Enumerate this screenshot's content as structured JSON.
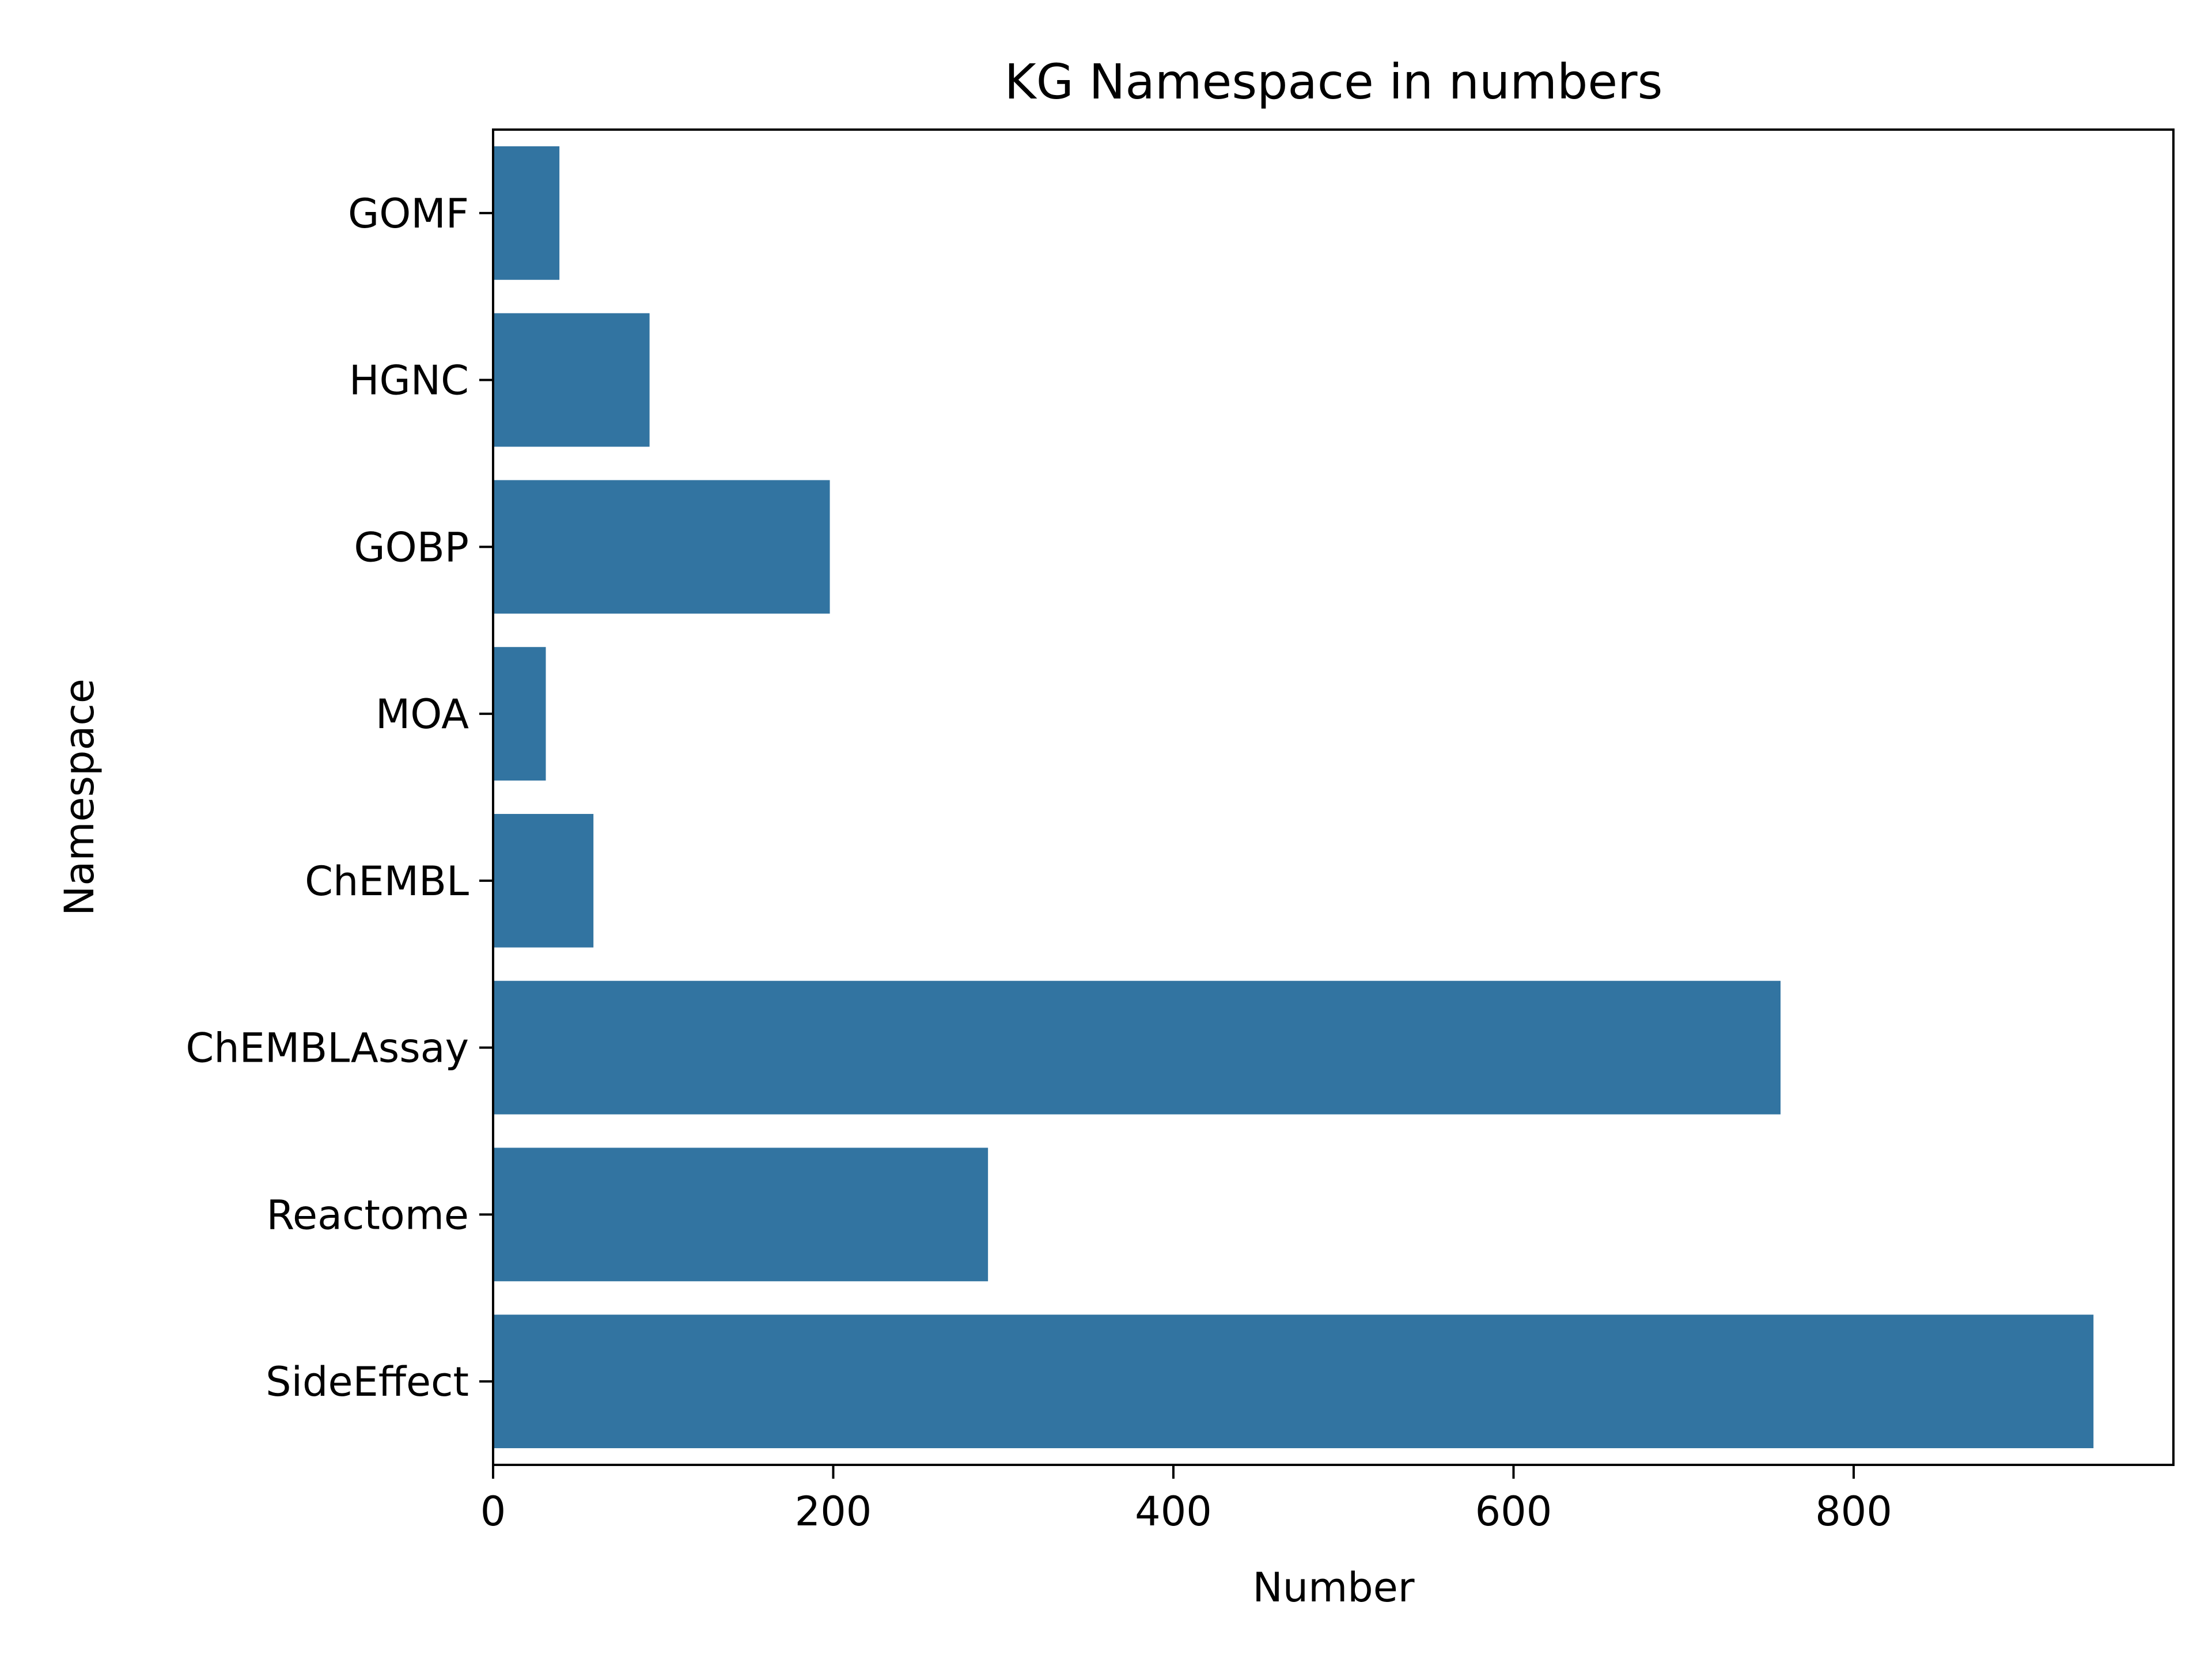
{
  "chart_data": {
    "type": "bar",
    "orientation": "horizontal",
    "title": "KG Namespace in numbers",
    "xlabel": "Number",
    "ylabel": "Namespace",
    "categories": [
      "GOMF",
      "HGNC",
      "GOBP",
      "MOA",
      "ChEMBL",
      "ChEMBLAssay",
      "Reactome",
      "SideEffect"
    ],
    "values": [
      39,
      92,
      198,
      31,
      59,
      757,
      291,
      941
    ],
    "xlim": [
      0,
      988
    ],
    "xticks": [
      0,
      200,
      400,
      600,
      800
    ],
    "grid": false,
    "legend": "none",
    "bar_color": "#3274a1"
  }
}
